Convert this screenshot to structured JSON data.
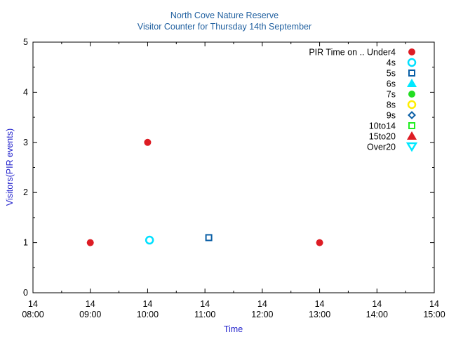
{
  "chart_data": {
    "type": "scatter",
    "title": "North Cove Nature Reserve",
    "subtitle": "Visitor Counter for Thursday 14th September",
    "xlabel": "Time",
    "ylabel": "Visitors(PIR events)",
    "x_range": [
      "08:00",
      "15:00"
    ],
    "ylim": [
      0,
      5
    ],
    "y_ticks": [
      0,
      1,
      2,
      3,
      4,
      5
    ],
    "x_ticks": [
      {
        "time": "08:00",
        "line1": "14",
        "line2": "08:00"
      },
      {
        "time": "09:00",
        "line1": "14",
        "line2": "09:00"
      },
      {
        "time": "10:00",
        "line1": "14",
        "line2": "10:00"
      },
      {
        "time": "11:00",
        "line1": "14",
        "line2": "11:00"
      },
      {
        "time": "12:00",
        "line1": "14",
        "line2": "12:00"
      },
      {
        "time": "13:00",
        "line1": "14",
        "line2": "13:00"
      },
      {
        "time": "14:00",
        "line1": "14",
        "line2": "14:00"
      },
      {
        "time": "15:00",
        "line1": "14",
        "line2": "15:00"
      }
    ],
    "grid": false,
    "legend_position": "top-right",
    "legend_title": "PIR Time on ..",
    "series": [
      {
        "name": "Under4",
        "marker": "filled-circle",
        "color": "#dd1c24",
        "points": [
          {
            "x": "09:00",
            "y": 1
          },
          {
            "x": "10:00",
            "y": 3
          },
          {
            "x": "13:00",
            "y": 1
          }
        ]
      },
      {
        "name": "4s",
        "marker": "open-circle",
        "color": "#00e0ff",
        "points": [
          {
            "x": "10:02",
            "y": 1.05
          }
        ]
      },
      {
        "name": "5s",
        "marker": "open-square",
        "color": "#0a5fa6",
        "points": [
          {
            "x": "11:04",
            "y": 1.1
          }
        ]
      },
      {
        "name": "6s",
        "marker": "filled-triangle-up",
        "color": "#00e8ff",
        "points": []
      },
      {
        "name": "7s",
        "marker": "filled-circle",
        "color": "#22dd22",
        "points": []
      },
      {
        "name": "8s",
        "marker": "open-circle",
        "color": "#ffee00",
        "points": []
      },
      {
        "name": "9s",
        "marker": "open-diamond",
        "color": "#0a5fa6",
        "points": []
      },
      {
        "name": "10to14",
        "marker": "open-square",
        "color": "#22ee22",
        "points": []
      },
      {
        "name": "15to20",
        "marker": "filled-triangle-up",
        "color": "#dd1c24",
        "points": []
      },
      {
        "name": "Over20",
        "marker": "open-triangle-down",
        "color": "#00e8ff",
        "points": []
      }
    ]
  }
}
